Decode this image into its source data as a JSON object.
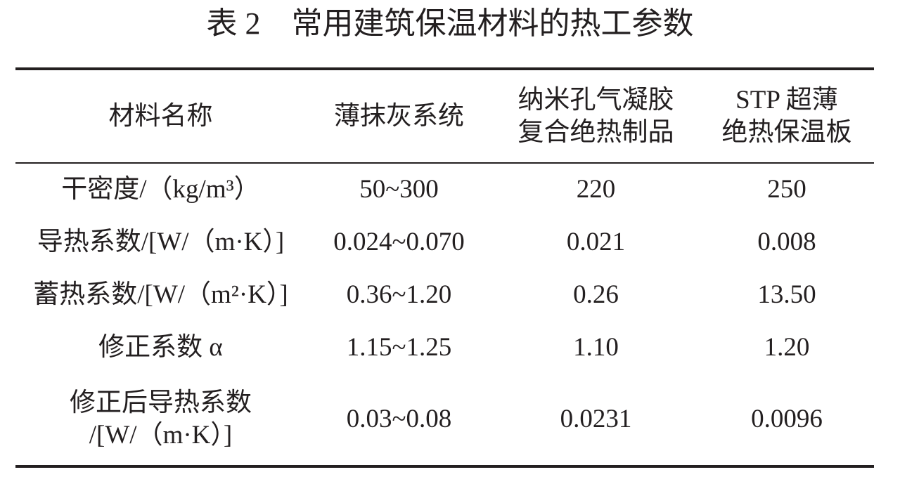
{
  "title": "表 2　常用建筑保温材料的热工参数",
  "table": {
    "header": [
      [
        "材料名称"
      ],
      [
        "薄抹灰系统"
      ],
      [
        "纳米孔气凝胶",
        "复合绝热制品"
      ],
      [
        "STP 超薄",
        "绝热保温板"
      ]
    ],
    "rows": [
      [
        [
          "干密度/（kg/m³）"
        ],
        [
          "50~300"
        ],
        [
          "220"
        ],
        [
          "250"
        ]
      ],
      [
        [
          "导热系数/[W/（m·K）]"
        ],
        [
          "0.024~0.070"
        ],
        [
          "0.021"
        ],
        [
          "0.008"
        ]
      ],
      [
        [
          "蓄热系数/[W/（m²·K）]"
        ],
        [
          "0.36~1.20"
        ],
        [
          "0.26"
        ],
        [
          "13.50"
        ]
      ],
      [
        [
          "修正系数 α"
        ],
        [
          "1.15~1.25"
        ],
        [
          "1.10"
        ],
        [
          "1.20"
        ]
      ],
      [
        [
          "修正后导热系数",
          "/[W/（m·K）]"
        ],
        [
          "0.03~0.08"
        ],
        [
          "0.0231"
        ],
        [
          "0.0096"
        ]
      ]
    ]
  }
}
